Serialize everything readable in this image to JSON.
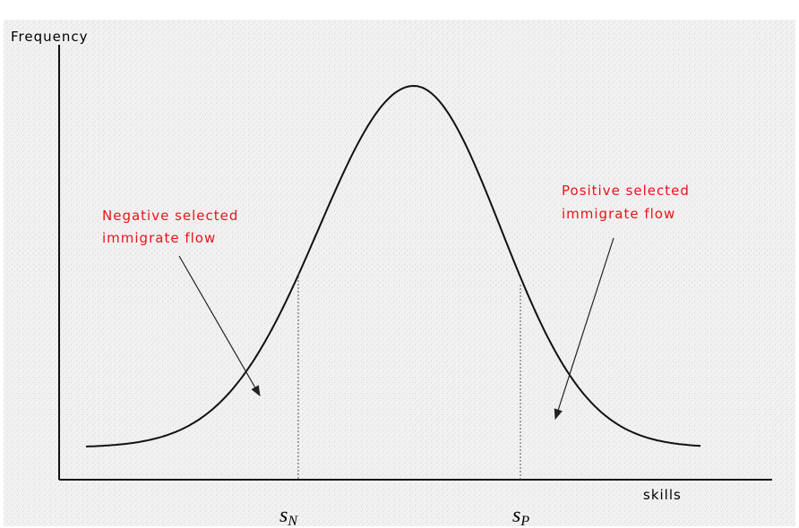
{
  "axes": {
    "y_label": "Frequency",
    "x_label": "skills"
  },
  "annotations": {
    "negative": [
      "Negative selected",
      "immigrate flow"
    ],
    "positive": [
      "Positive selected",
      "immigrate flow"
    ]
  },
  "markers": {
    "left": {
      "base": "s",
      "sub": "N"
    },
    "right": {
      "base": "s",
      "sub": "P"
    }
  }
}
